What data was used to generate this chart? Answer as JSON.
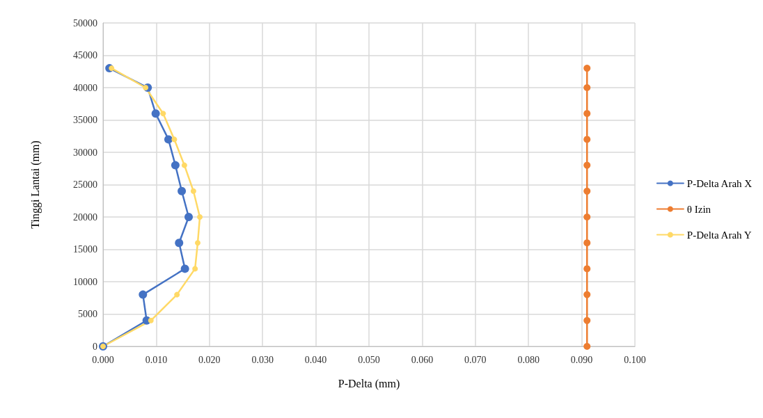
{
  "chart_data": {
    "type": "line",
    "xlabel": "P-Delta (mm)",
    "ylabel": "Tinggi Lantai (mm)",
    "series": [
      {
        "name": "P-Delta Arah X",
        "color": "#4472c4",
        "x": [
          0,
          0.0082,
          0.0075,
          0.0154,
          0.0143,
          0.0161,
          0.0148,
          0.0136,
          0.0123,
          0.0099,
          0.0084,
          0.0012
        ],
        "values": [
          0,
          4000,
          8000,
          12000,
          16000,
          20000,
          24000,
          28000,
          32000,
          36000,
          40000,
          43000
        ]
      },
      {
        "name": "θ Izin",
        "color": "#ed7d31",
        "x": [
          0.091,
          0.091,
          0.091,
          0.091,
          0.091,
          0.091,
          0.091,
          0.091,
          0.091,
          0.091,
          0.091,
          0.091
        ],
        "values": [
          0,
          4000,
          8000,
          12000,
          16000,
          20000,
          24000,
          28000,
          32000,
          36000,
          40000,
          43000
        ]
      },
      {
        "name": "P-Delta Arah Y",
        "color": "#ffd966",
        "x": [
          0,
          0.009,
          0.0139,
          0.0173,
          0.0178,
          0.0182,
          0.017,
          0.0153,
          0.0134,
          0.0113,
          0.008,
          0.0016
        ],
        "values": [
          0,
          4000,
          8000,
          12000,
          16000,
          20000,
          24000,
          28000,
          32000,
          36000,
          40000,
          43000
        ]
      }
    ],
    "xlim": [
      0,
      0.1
    ],
    "xticks": [
      {
        "value": 0,
        "label": "0.000"
      },
      {
        "value": 0.01,
        "label": "0.010"
      },
      {
        "value": 0.02,
        "label": "0.020"
      },
      {
        "value": 0.03,
        "label": "0.030"
      },
      {
        "value": 0.04,
        "label": "0.040"
      },
      {
        "value": 0.05,
        "label": "0.050"
      },
      {
        "value": 0.06,
        "label": "0.060"
      },
      {
        "value": 0.07,
        "label": "0.070"
      },
      {
        "value": 0.08,
        "label": "0.080"
      },
      {
        "value": 0.09,
        "label": "0.090"
      },
      {
        "value": 0.1,
        "label": "0.100"
      }
    ],
    "ylim": [
      0,
      50000
    ],
    "yticks": [
      0,
      5000,
      10000,
      15000,
      20000,
      25000,
      30000,
      35000,
      40000,
      45000,
      50000
    ],
    "grid": true,
    "legend": "right",
    "marker": "circle",
    "line_style": "solid"
  }
}
